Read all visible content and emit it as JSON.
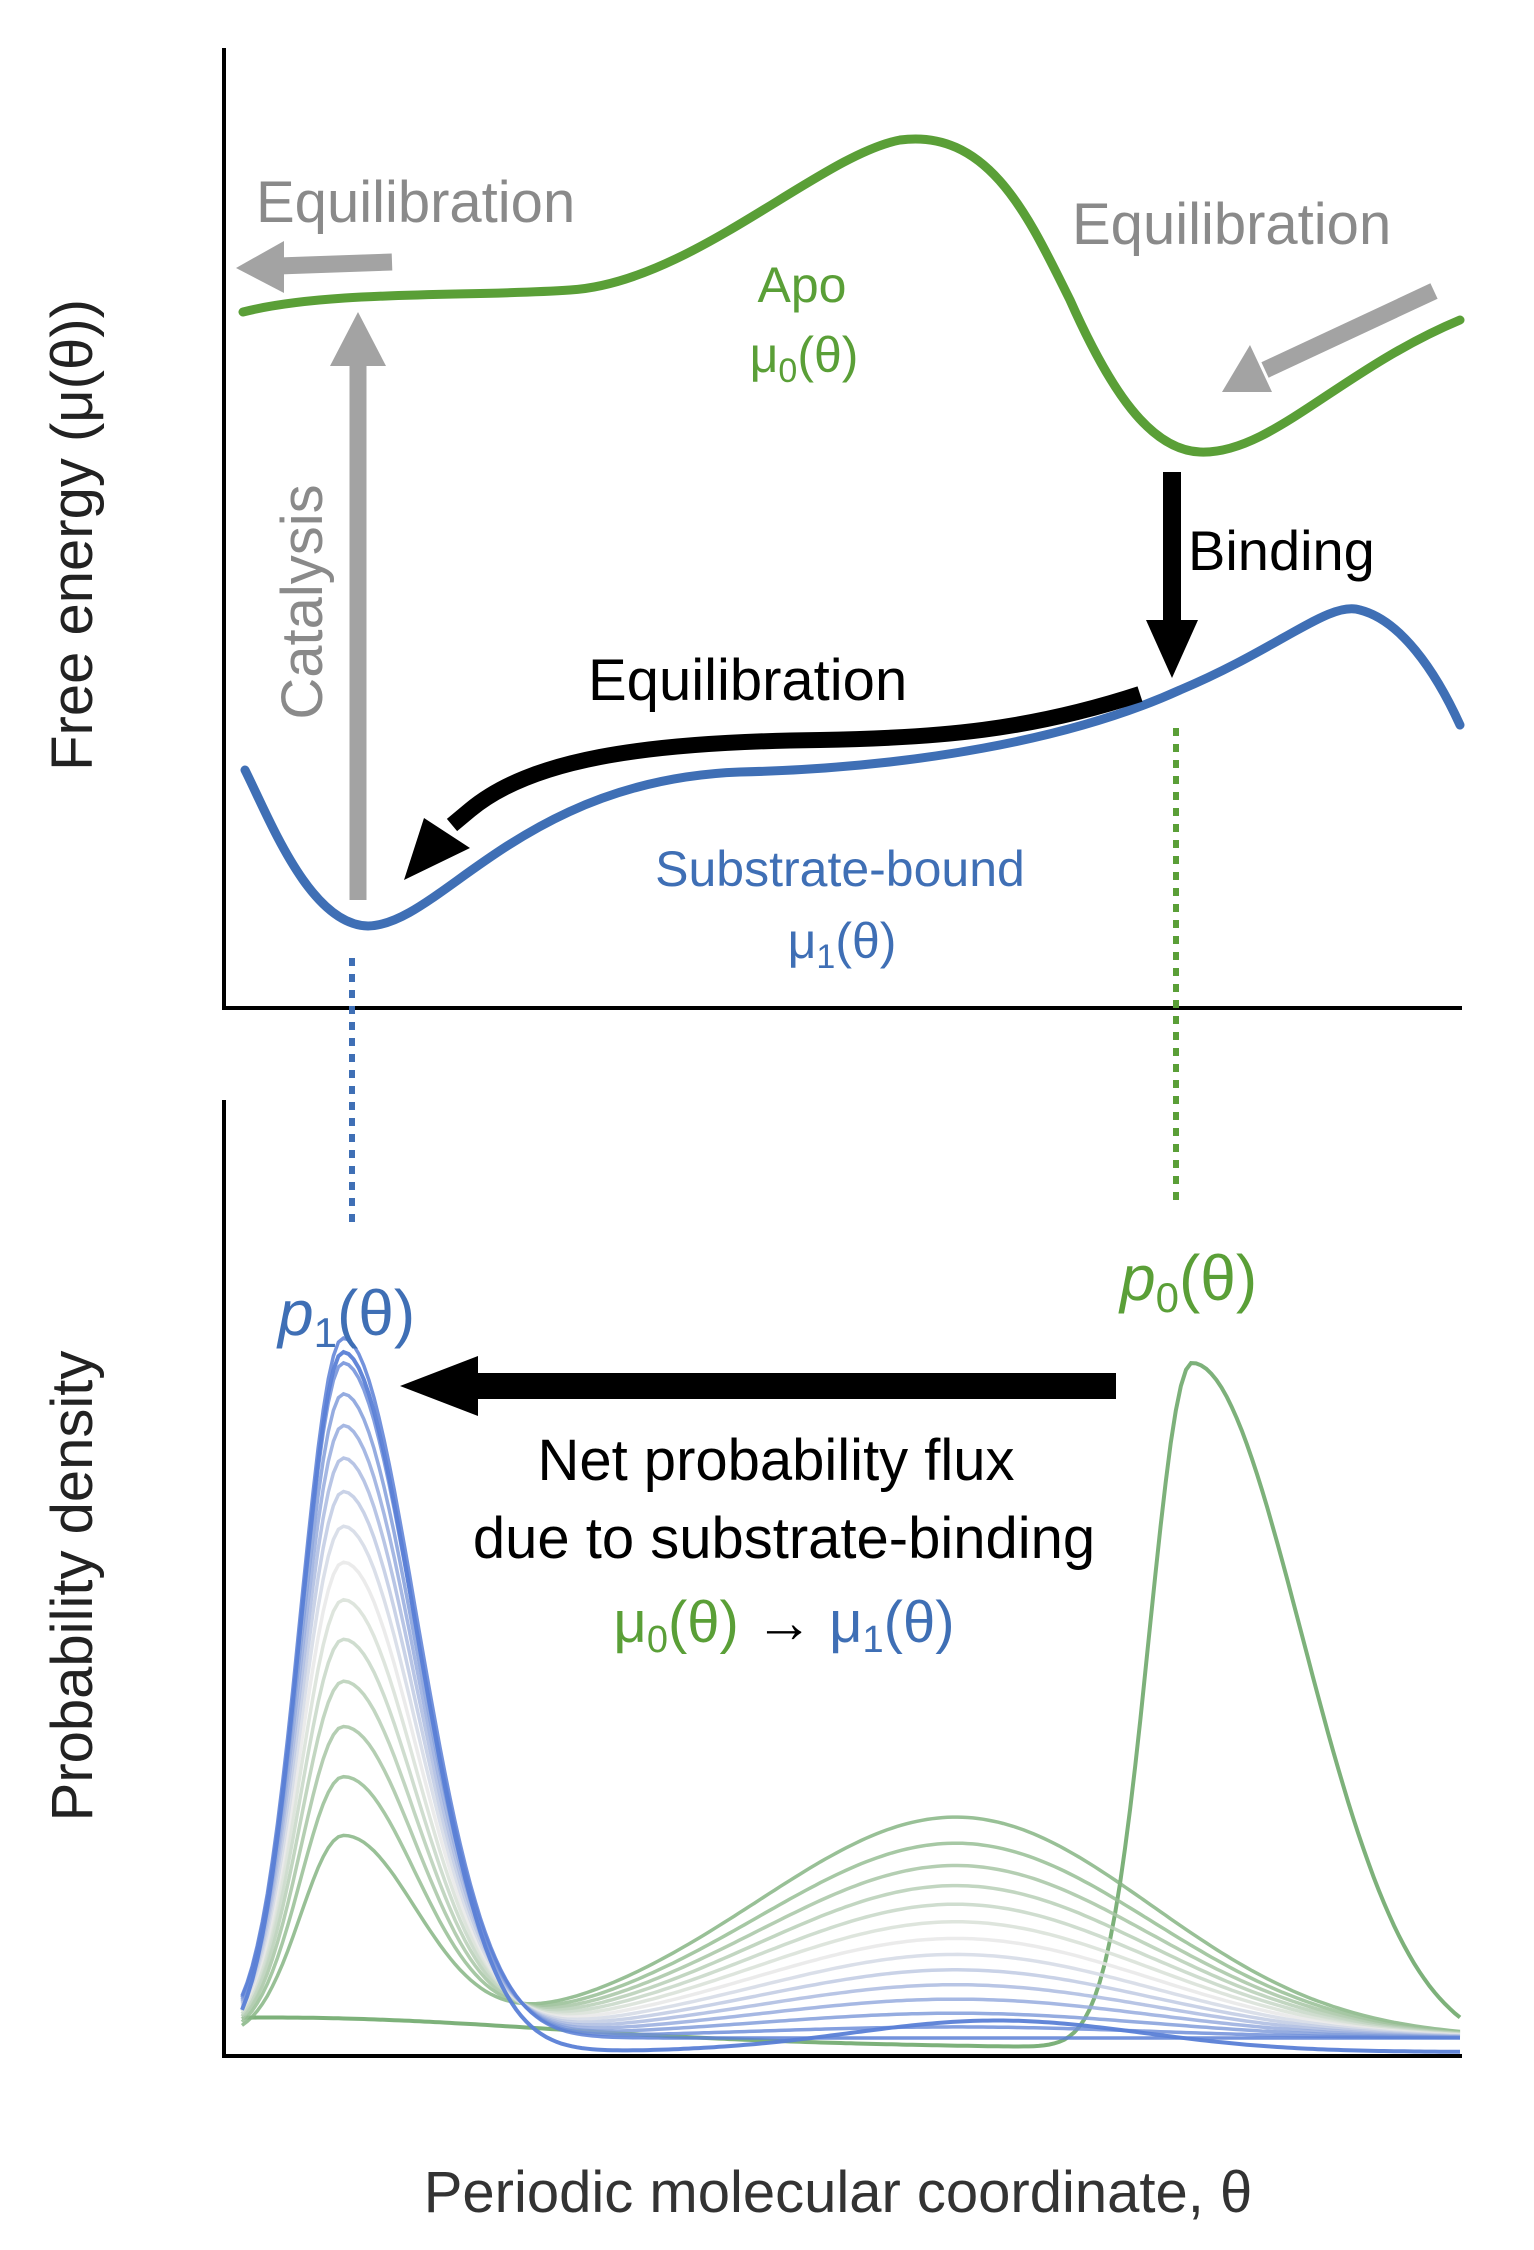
{
  "colors": {
    "apo_green": "#5a9f37",
    "bound_blue": "#3f6fb5",
    "gray_arrow": "#a3a3a3",
    "gray_text": "#8a8a8a",
    "black": "#000000",
    "density_green": "#76ad73",
    "density_blue": "#5a7fd6"
  },
  "top_panel": {
    "ylabel": "Free energy (μ(θ))",
    "apo_label_line1": "Apo",
    "apo_label_line2": "μ0(θ)",
    "bound_label_line1": "Substrate-bound",
    "bound_label_line2": "μ1(θ)",
    "equilibration_left": "Equilibration",
    "equilibration_right": "Equilibration",
    "equilibration_bound": "Equilibration",
    "binding": "Binding",
    "catalysis": "Catalysis"
  },
  "bottom_panel": {
    "ylabel": "Probability density",
    "p1_label": "p1(θ)",
    "p0_label": "p0(θ)",
    "flux_line1": "Net probability flux",
    "flux_line2": "due to substrate-binding",
    "flux_line3_from": "μ0(θ)",
    "flux_line3_arrow": "→",
    "flux_line3_to": "μ1(θ)"
  },
  "xlabel": "Periodic molecular coordinate, θ"
}
